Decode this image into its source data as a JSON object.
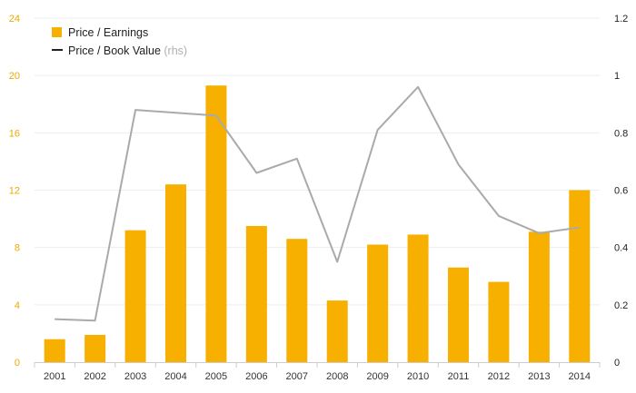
{
  "chart_data": {
    "type": "bar",
    "categories": [
      "2001",
      "2002",
      "2003",
      "2004",
      "2005",
      "2006",
      "2007",
      "2008",
      "2009",
      "2010",
      "2011",
      "2012",
      "2013",
      "2014"
    ],
    "series": [
      {
        "name": "Price / Earnings",
        "type": "bar",
        "axis": "left",
        "color": "#f7b000",
        "values": [
          1.6,
          1.9,
          9.2,
          12.4,
          19.3,
          9.5,
          8.6,
          4.3,
          8.2,
          8.9,
          6.6,
          5.6,
          9.1,
          12.0
        ]
      },
      {
        "name": "Price / Book Value",
        "name_suffix": "(rhs)",
        "type": "line",
        "axis": "right",
        "color": "#aaaaaa",
        "values": [
          0.15,
          0.145,
          0.88,
          0.87,
          0.86,
          0.66,
          0.71,
          0.35,
          0.81,
          0.96,
          0.69,
          0.51,
          0.45,
          0.47
        ]
      }
    ],
    "y_left": {
      "ylim": [
        0,
        24
      ],
      "ticks": [
        "0",
        "4",
        "8",
        "12",
        "16",
        "20",
        "24"
      ]
    },
    "y_right": {
      "ylim": [
        0,
        1.2
      ],
      "ticks": [
        "0",
        "0.2",
        "0.4",
        "0.6",
        "0.8",
        "1",
        "1.2"
      ]
    },
    "grid": true,
    "legend": "top-left",
    "colors": {
      "bar": "#f7b000",
      "line": "#aaaaaa",
      "left_axis_text": "#f0a800",
      "grid": "#eeeeee"
    }
  }
}
